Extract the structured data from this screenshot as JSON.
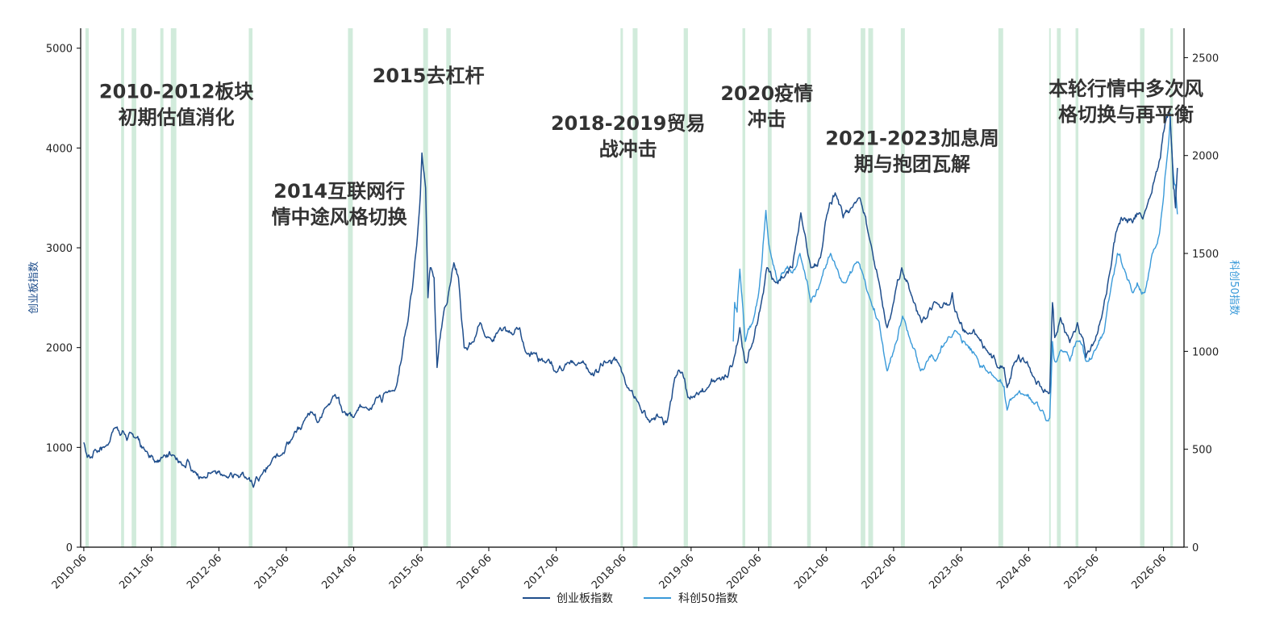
{
  "chart_data": {
    "type": "line",
    "title": "",
    "xlabel": "",
    "ylabel_left": "创业板指数",
    "ylabel_right": "科创50指数",
    "x_range": [
      "2010-05-15",
      "2026-09-20"
    ],
    "ylim_left": [
      0,
      5200
    ],
    "ylim_right": [
      0,
      2650
    ],
    "yticks_left": [
      0,
      1000,
      2000,
      3000,
      4000,
      5000
    ],
    "yticks_right": [
      0,
      500,
      1000,
      1500,
      2000,
      2500
    ],
    "xticks": [
      "2010-06",
      "2011-06",
      "2012-06",
      "2013-06",
      "2014-06",
      "2015-06",
      "2016-06",
      "2017-06",
      "2018-06",
      "2019-06",
      "2020-06",
      "2021-06",
      "2022-06",
      "2023-06",
      "2024-06",
      "2025-06",
      "2026-06"
    ],
    "grid": false,
    "legend_position": "bottom-center",
    "colors": {
      "series_left": "#1f4e8c",
      "series_right": "#3a9ad9",
      "shading": "#b8e0c8",
      "left_axis_title": "#1f4e8c",
      "right_axis_title": "#3a9ad9"
    },
    "series": [
      {
        "name": "创业板指数",
        "axis": "left",
        "points": [
          [
            "2010-06-01",
            1050
          ],
          [
            "2010-06-20",
            900
          ],
          [
            "2010-08-01",
            980
          ],
          [
            "2010-10-01",
            1020
          ],
          [
            "2010-11-20",
            1200
          ],
          [
            "2010-12-15",
            1120
          ],
          [
            "2011-01-20",
            1070
          ],
          [
            "2011-03-01",
            1100
          ],
          [
            "2011-05-01",
            960
          ],
          [
            "2011-06-20",
            850
          ],
          [
            "2011-08-01",
            900
          ],
          [
            "2011-10-01",
            920
          ],
          [
            "2011-11-15",
            820
          ],
          [
            "2011-12-15",
            880
          ],
          [
            "2012-01-15",
            750
          ],
          [
            "2012-03-01",
            700
          ],
          [
            "2012-05-01",
            760
          ],
          [
            "2012-07-01",
            720
          ],
          [
            "2012-09-01",
            730
          ],
          [
            "2012-11-01",
            680
          ],
          [
            "2012-12-05",
            600
          ],
          [
            "2013-01-15",
            720
          ],
          [
            "2013-03-01",
            820
          ],
          [
            "2013-05-01",
            920
          ],
          [
            "2013-07-01",
            1080
          ],
          [
            "2013-09-15",
            1300
          ],
          [
            "2013-10-15",
            1350
          ],
          [
            "2013-11-20",
            1250
          ],
          [
            "2014-01-01",
            1400
          ],
          [
            "2014-02-20",
            1530
          ],
          [
            "2014-04-01",
            1350
          ],
          [
            "2014-06-01",
            1300
          ],
          [
            "2014-08-01",
            1400
          ],
          [
            "2014-10-01",
            1500
          ],
          [
            "2014-12-01",
            1550
          ],
          [
            "2015-01-15",
            1600
          ],
          [
            "2015-03-01",
            2100
          ],
          [
            "2015-04-15",
            2600
          ],
          [
            "2015-05-15",
            3200
          ],
          [
            "2015-06-05",
            3950
          ],
          [
            "2015-06-25",
            3600
          ],
          [
            "2015-07-08",
            2500
          ],
          [
            "2015-07-20",
            2800
          ],
          [
            "2015-08-10",
            2700
          ],
          [
            "2015-08-26",
            1800
          ],
          [
            "2015-09-20",
            2200
          ],
          [
            "2015-11-01",
            2600
          ],
          [
            "2015-11-25",
            2850
          ],
          [
            "2015-12-20",
            2700
          ],
          [
            "2016-01-20",
            2000
          ],
          [
            "2016-03-01",
            2050
          ],
          [
            "2016-04-15",
            2250
          ],
          [
            "2016-06-01",
            2100
          ],
          [
            "2016-08-01",
            2200
          ],
          [
            "2016-10-01",
            2150
          ],
          [
            "2016-11-15",
            2200
          ],
          [
            "2016-12-20",
            1950
          ],
          [
            "2017-02-01",
            1950
          ],
          [
            "2017-04-01",
            1850
          ],
          [
            "2017-06-01",
            1750
          ],
          [
            "2017-08-01",
            1850
          ],
          [
            "2017-10-01",
            1850
          ],
          [
            "2017-12-01",
            1750
          ],
          [
            "2018-01-15",
            1750
          ],
          [
            "2018-03-01",
            1850
          ],
          [
            "2018-05-01",
            1850
          ],
          [
            "2018-06-20",
            1600
          ],
          [
            "2018-08-20",
            1450
          ],
          [
            "2018-10-20",
            1250
          ],
          [
            "2018-12-15",
            1300
          ],
          [
            "2019-01-20",
            1250
          ],
          [
            "2019-03-05",
            1700
          ],
          [
            "2019-04-15",
            1750
          ],
          [
            "2019-05-15",
            1500
          ],
          [
            "2019-07-01",
            1550
          ],
          [
            "2019-09-01",
            1600
          ],
          [
            "2019-11-01",
            1700
          ],
          [
            "2019-12-15",
            1700
          ],
          [
            "2020-01-20",
            1900
          ],
          [
            "2020-02-20",
            2200
          ],
          [
            "2020-03-20",
            1850
          ],
          [
            "2020-05-01",
            2050
          ],
          [
            "2020-06-15",
            2450
          ],
          [
            "2020-07-15",
            2800
          ],
          [
            "2020-09-01",
            2650
          ],
          [
            "2020-10-15",
            2700
          ],
          [
            "2020-12-01",
            2800
          ],
          [
            "2021-01-15",
            3350
          ],
          [
            "2021-03-10",
            2800
          ],
          [
            "2021-05-01",
            2900
          ],
          [
            "2021-06-20",
            3450
          ],
          [
            "2021-07-20",
            3550
          ],
          [
            "2021-09-01",
            3300
          ],
          [
            "2021-10-15",
            3400
          ],
          [
            "2021-12-01",
            3500
          ],
          [
            "2022-01-20",
            3100
          ],
          [
            "2022-03-15",
            2650
          ],
          [
            "2022-04-27",
            2200
          ],
          [
            "2022-06-15",
            2600
          ],
          [
            "2022-07-15",
            2800
          ],
          [
            "2022-09-01",
            2550
          ],
          [
            "2022-10-31",
            2250
          ],
          [
            "2022-12-15",
            2400
          ],
          [
            "2023-01-20",
            2450
          ],
          [
            "2023-03-01",
            2450
          ],
          [
            "2023-04-15",
            2550
          ],
          [
            "2023-05-15",
            2300
          ],
          [
            "2023-07-01",
            2150
          ],
          [
            "2023-09-01",
            2100
          ],
          [
            "2023-10-25",
            1950
          ],
          [
            "2023-12-15",
            1800
          ],
          [
            "2024-01-20",
            1800
          ],
          [
            "2024-02-05",
            1600
          ],
          [
            "2024-03-15",
            1850
          ],
          [
            "2024-05-01",
            1900
          ],
          [
            "2024-07-01",
            1700
          ],
          [
            "2024-08-20",
            1550
          ],
          [
            "2024-09-23",
            1550
          ],
          [
            "2024-10-08",
            2450
          ],
          [
            "2024-10-20",
            2100
          ],
          [
            "2024-11-20",
            2300
          ],
          [
            "2025-01-10",
            2050
          ],
          [
            "2025-02-20",
            2250
          ],
          [
            "2025-04-07",
            1900
          ],
          [
            "2025-05-20",
            2050
          ],
          [
            "2025-07-01",
            2300
          ],
          [
            "2025-08-20",
            2800
          ],
          [
            "2025-09-25",
            3200
          ],
          [
            "2025-11-01",
            3300
          ],
          [
            "2025-12-15",
            3250
          ],
          [
            "2026-01-20",
            3350
          ],
          [
            "2026-03-01",
            3400
          ],
          [
            "2026-04-15",
            3700
          ],
          [
            "2026-05-15",
            3900
          ],
          [
            "2026-06-10",
            4250
          ],
          [
            "2026-07-05",
            4350
          ],
          [
            "2026-07-25",
            3600
          ],
          [
            "2026-08-05",
            3400
          ],
          [
            "2026-08-15",
            3800
          ]
        ]
      },
      {
        "name": "科创50指数",
        "axis": "right",
        "points": [
          [
            "2020-01-15",
            1050
          ],
          [
            "2020-01-23",
            1250
          ],
          [
            "2020-02-05",
            1200
          ],
          [
            "2020-02-20",
            1420
          ],
          [
            "2020-03-20",
            1050
          ],
          [
            "2020-04-30",
            1150
          ],
          [
            "2020-06-01",
            1300
          ],
          [
            "2020-07-10",
            1720
          ],
          [
            "2020-07-25",
            1550
          ],
          [
            "2020-09-10",
            1350
          ],
          [
            "2020-10-15",
            1400
          ],
          [
            "2020-12-01",
            1400
          ],
          [
            "2021-01-10",
            1500
          ],
          [
            "2021-03-10",
            1250
          ],
          [
            "2021-05-01",
            1350
          ],
          [
            "2021-06-25",
            1500
          ],
          [
            "2021-08-01",
            1420
          ],
          [
            "2021-09-15",
            1350
          ],
          [
            "2021-11-10",
            1450
          ],
          [
            "2021-12-15",
            1400
          ],
          [
            "2022-01-20",
            1280
          ],
          [
            "2022-03-15",
            1150
          ],
          [
            "2022-04-27",
            900
          ],
          [
            "2022-06-01",
            1000
          ],
          [
            "2022-07-20",
            1180
          ],
          [
            "2022-09-01",
            1050
          ],
          [
            "2022-10-25",
            900
          ],
          [
            "2022-12-01",
            950
          ],
          [
            "2023-01-15",
            950
          ],
          [
            "2023-03-15",
            1050
          ],
          [
            "2023-05-10",
            1100
          ],
          [
            "2023-06-20",
            1050
          ],
          [
            "2023-08-20",
            980
          ],
          [
            "2023-10-20",
            900
          ],
          [
            "2023-12-15",
            850
          ],
          [
            "2024-01-20",
            820
          ],
          [
            "2024-02-05",
            700
          ],
          [
            "2024-03-01",
            760
          ],
          [
            "2024-05-01",
            780
          ],
          [
            "2024-07-01",
            730
          ],
          [
            "2024-08-15",
            700
          ],
          [
            "2024-09-23",
            660
          ],
          [
            "2024-10-08",
            1050
          ],
          [
            "2024-10-20",
            950
          ],
          [
            "2024-12-01",
            1000
          ],
          [
            "2025-01-10",
            950
          ],
          [
            "2025-03-01",
            1050
          ],
          [
            "2025-04-07",
            950
          ],
          [
            "2025-05-20",
            1000
          ],
          [
            "2025-07-15",
            1100
          ],
          [
            "2025-08-25",
            1350
          ],
          [
            "2025-09-25",
            1500
          ],
          [
            "2025-11-01",
            1420
          ],
          [
            "2025-12-15",
            1300
          ],
          [
            "2026-01-10",
            1350
          ],
          [
            "2026-02-20",
            1300
          ],
          [
            "2026-04-01",
            1500
          ],
          [
            "2026-05-10",
            1600
          ],
          [
            "2026-06-10",
            1900
          ],
          [
            "2026-07-08",
            2200
          ],
          [
            "2026-07-25",
            1900
          ],
          [
            "2026-08-05",
            1850
          ],
          [
            "2026-08-15",
            1700
          ]
        ]
      }
    ],
    "shaded_periods": [
      [
        "2010-06-10",
        "2010-06-28"
      ],
      [
        "2010-12-20",
        "2011-01-05"
      ],
      [
        "2011-02-15",
        "2011-03-12"
      ],
      [
        "2011-07-20",
        "2011-08-06"
      ],
      [
        "2011-09-15",
        "2011-10-15"
      ],
      [
        "2012-11-10",
        "2012-11-30"
      ],
      [
        "2014-05-01",
        "2014-05-27"
      ],
      [
        "2015-06-12",
        "2015-07-08"
      ],
      [
        "2015-10-15",
        "2015-11-08"
      ],
      [
        "2018-05-15",
        "2018-05-28"
      ],
      [
        "2018-07-20",
        "2018-08-15"
      ],
      [
        "2019-04-22",
        "2019-05-15"
      ],
      [
        "2020-03-05",
        "2020-03-20"
      ],
      [
        "2020-07-20",
        "2020-08-10"
      ],
      [
        "2021-02-18",
        "2021-03-10"
      ],
      [
        "2021-12-05",
        "2021-12-30"
      ],
      [
        "2022-01-15",
        "2022-02-10"
      ],
      [
        "2022-07-10",
        "2022-08-01"
      ],
      [
        "2023-12-20",
        "2024-01-15"
      ],
      [
        "2024-09-20",
        "2024-09-24"
      ],
      [
        "2024-11-01",
        "2024-11-22"
      ],
      [
        "2025-02-10",
        "2025-02-25"
      ],
      [
        "2026-01-25",
        "2026-02-18"
      ],
      [
        "2026-07-08",
        "2026-07-22"
      ]
    ],
    "annotations": [
      {
        "lines": [
          "2010-2012板块",
          "初期估值消化"
        ],
        "x": "2011-10-15",
        "y_left": 4500
      },
      {
        "lines": [
          "2014互联网行",
          "情中途风格切换"
        ],
        "x": "2014-03-15",
        "y_left": 3500
      },
      {
        "lines": [
          "2015去杠杆"
        ],
        "x": "2015-07-10",
        "y_left": 4660
      },
      {
        "lines": [
          "2018-2019贸易",
          "战冲击"
        ],
        "x": "2018-06-25",
        "y_left": 4180
      },
      {
        "lines": [
          "2020疫情",
          "冲击"
        ],
        "x": "2020-07-15",
        "y_left": 4480
      },
      {
        "lines": [
          "2021-2023加息周",
          "期与抱团瓦解"
        ],
        "x": "2022-09-10",
        "y_left": 4030
      },
      {
        "lines": [
          "本轮行情中多次风",
          "格切换与再平衡"
        ],
        "x": "2025-11-10",
        "y_left": 4530
      }
    ]
  }
}
